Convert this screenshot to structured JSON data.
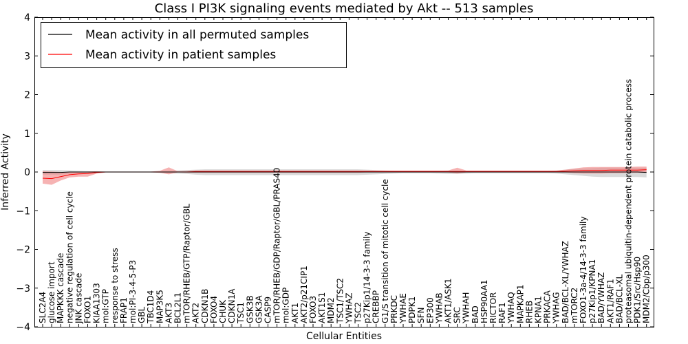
{
  "chart_data": {
    "type": "line",
    "title": "Class I PI3K signaling events mediated by Akt -- 513 samples",
    "xlabel": "Cellular Entities",
    "ylabel": "Inferred Activity",
    "ylim": [
      -4,
      4
    ],
    "yticks": [
      -4,
      -3,
      -2,
      -1,
      0,
      1,
      2,
      3,
      4
    ],
    "ytick_labels": [
      "−4",
      "−3",
      "−2",
      "−1",
      "0",
      "1",
      "2",
      "3",
      "4"
    ],
    "grid": false,
    "legend_position": "top-left",
    "categories": [
      "SLC2A4",
      "glucose import",
      "MAPKKK cascade",
      "negative regulation of cell cycle",
      "JNK cascade",
      "FOXO1",
      "KIAA1303",
      "mol:GTP",
      "response to stress",
      "FRAP1",
      "mol:PI-3-4-5-P3",
      "GBL",
      "TBC1D4",
      "MAP3K5",
      "AKT3",
      "BCL2L1",
      "mTOR/RHEB/GTP/Raptor/GBL",
      "AKT2",
      "CDKN1B",
      "FOXO4",
      "CHUK",
      "CDKN1A",
      "TSC1",
      "GSK3B",
      "GSK3A",
      "CASP9",
      "mTOR/RHEB/GDP/Raptor/GBL/PRAS40",
      "mol:GDP",
      "AKT1",
      "AKT2/p21CIP1",
      "FOXO3",
      "AKT1S1",
      "MDM2",
      "TSC1/TSC2",
      "YWHAZ",
      "TSC2",
      "p27Kip1/14-3-3 family",
      "CREBBP",
      "G1/S transition of mitotic cell cycle",
      "PRKDC",
      "YWHAE",
      "PDPK1",
      "SFN",
      "EP300",
      "YWHAB",
      "AKT1/ASK1",
      "SRC",
      "YWHAH",
      "BAD",
      "HSP90AA1",
      "RICTOR",
      "RAF1",
      "YWHAQ",
      "MAPKAP1",
      "RHEB",
      "KPNA1",
      "PRKACA",
      "YWHAG",
      "BAD/BCL-XL/YWHAZ",
      "mTORC2",
      "FOXO1-3a-4/14-3-3 family",
      "p27Kip1/KPNA1",
      "BAD/YWHAZ",
      "AKT1/RAF1",
      "BAD/BCL-XL",
      "proteasomal ubiquitin-dependent protein catabolic process",
      "PDK1/Src/Hsp90",
      "MDM2/Cbp/p300"
    ],
    "series": [
      {
        "name": "Mean activity in all permuted samples",
        "color": "#000000",
        "band_color": "#bbbbbb",
        "mean": [
          -0.01,
          -0.01,
          -0.01,
          0,
          0,
          0,
          0,
          0,
          0,
          0,
          0,
          0,
          0,
          0,
          0,
          0,
          0,
          0,
          0,
          0,
          0,
          0,
          0,
          0,
          0,
          0,
          0,
          0,
          0,
          0,
          0,
          0,
          0,
          0,
          0,
          0,
          0,
          0,
          0,
          0,
          0,
          0,
          0,
          0,
          0,
          0,
          0,
          0,
          0,
          0,
          0,
          0,
          0,
          0,
          0,
          0,
          0,
          0,
          0,
          0,
          0,
          0,
          0,
          0,
          0,
          0,
          0,
          -0.01
        ],
        "lower": [
          -0.07,
          -0.07,
          -0.07,
          -0.05,
          -0.03,
          -0.02,
          -0.01,
          -0.01,
          -0.01,
          -0.01,
          -0.01,
          -0.01,
          -0.01,
          -0.02,
          -0.03,
          -0.04,
          -0.05,
          -0.07,
          -0.08,
          -0.08,
          -0.08,
          -0.08,
          -0.08,
          -0.08,
          -0.08,
          -0.08,
          -0.08,
          -0.08,
          -0.08,
          -0.08,
          -0.08,
          -0.08,
          -0.08,
          -0.08,
          -0.08,
          -0.08,
          -0.07,
          -0.06,
          -0.05,
          -0.04,
          -0.03,
          -0.03,
          -0.03,
          -0.03,
          -0.04,
          -0.05,
          -0.05,
          -0.04,
          -0.03,
          -0.03,
          -0.03,
          -0.03,
          -0.03,
          -0.03,
          -0.03,
          -0.03,
          -0.03,
          -0.04,
          -0.06,
          -0.08,
          -0.1,
          -0.12,
          -0.13,
          -0.13,
          -0.13,
          -0.13,
          -0.13,
          -0.14
        ],
        "upper": [
          0.05,
          0.05,
          0.05,
          0.04,
          0.03,
          0.02,
          0.01,
          0.01,
          0.01,
          0.01,
          0.01,
          0.01,
          0.01,
          0.02,
          0.03,
          0.04,
          0.05,
          0.06,
          0.07,
          0.07,
          0.07,
          0.07,
          0.07,
          0.07,
          0.07,
          0.07,
          0.07,
          0.07,
          0.07,
          0.07,
          0.07,
          0.07,
          0.07,
          0.07,
          0.07,
          0.07,
          0.06,
          0.05,
          0.04,
          0.03,
          0.03,
          0.03,
          0.03,
          0.03,
          0.03,
          0.04,
          0.04,
          0.03,
          0.03,
          0.03,
          0.03,
          0.03,
          0.03,
          0.03,
          0.03,
          0.03,
          0.03,
          0.04,
          0.06,
          0.08,
          0.09,
          0.1,
          0.11,
          0.11,
          0.11,
          0.11,
          0.11,
          0.11
        ]
      },
      {
        "name": "Mean activity in patient samples",
        "color": "#ff0000",
        "band_color": "#f08080",
        "mean": [
          -0.16,
          -0.17,
          -0.12,
          -0.07,
          -0.05,
          -0.04,
          -0.01,
          0,
          0,
          0,
          0,
          0,
          0,
          0,
          0,
          0,
          0,
          0.01,
          0.01,
          0.01,
          0.01,
          0.01,
          0.01,
          0.01,
          0.01,
          0.01,
          0.01,
          0.01,
          0.01,
          0.01,
          0.01,
          0.01,
          0.01,
          0.01,
          0.01,
          0.01,
          0.01,
          0.01,
          0.01,
          0.01,
          0.01,
          0.01,
          0.01,
          0.01,
          0.01,
          0.01,
          0.01,
          0.01,
          0.01,
          0.01,
          0.01,
          0.01,
          0.01,
          0.01,
          0.01,
          0.01,
          0.01,
          0.01,
          0.02,
          0.03,
          0.04,
          0.04,
          0.04,
          0.05,
          0.05,
          0.05,
          0.05,
          0.06
        ],
        "lower": [
          -0.3,
          -0.33,
          -0.22,
          -0.14,
          -0.12,
          -0.12,
          -0.04,
          -0.01,
          -0.01,
          -0.01,
          -0.01,
          -0.01,
          -0.01,
          -0.02,
          -0.06,
          -0.01,
          -0.02,
          -0.02,
          -0.02,
          -0.02,
          -0.02,
          -0.02,
          -0.02,
          -0.02,
          -0.02,
          -0.02,
          -0.02,
          -0.02,
          -0.02,
          -0.02,
          -0.02,
          -0.02,
          -0.02,
          -0.02,
          -0.02,
          -0.02,
          -0.01,
          -0.01,
          -0.01,
          -0.01,
          -0.01,
          -0.01,
          -0.01,
          -0.01,
          -0.01,
          -0.01,
          -0.04,
          -0.01,
          -0.01,
          -0.01,
          -0.01,
          -0.01,
          -0.01,
          -0.01,
          -0.01,
          -0.01,
          -0.01,
          -0.01,
          -0.01,
          -0.03,
          -0.04,
          -0.04,
          -0.04,
          -0.03,
          -0.03,
          -0.02,
          -0.02,
          -0.02
        ],
        "upper": [
          0.02,
          0.01,
          0,
          0,
          0,
          0.01,
          0.02,
          0.01,
          0.01,
          0.01,
          0.01,
          0.01,
          0.01,
          0.03,
          0.12,
          0.02,
          0.03,
          0.04,
          0.04,
          0.04,
          0.04,
          0.04,
          0.04,
          0.04,
          0.04,
          0.04,
          0.04,
          0.04,
          0.04,
          0.04,
          0.04,
          0.04,
          0.04,
          0.04,
          0.04,
          0.04,
          0.04,
          0.04,
          0.04,
          0.04,
          0.04,
          0.04,
          0.04,
          0.04,
          0.04,
          0.04,
          0.11,
          0.04,
          0.04,
          0.04,
          0.04,
          0.04,
          0.04,
          0.04,
          0.04,
          0.04,
          0.04,
          0.04,
          0.06,
          0.09,
          0.12,
          0.13,
          0.13,
          0.13,
          0.13,
          0.13,
          0.14,
          0.14
        ]
      }
    ]
  }
}
